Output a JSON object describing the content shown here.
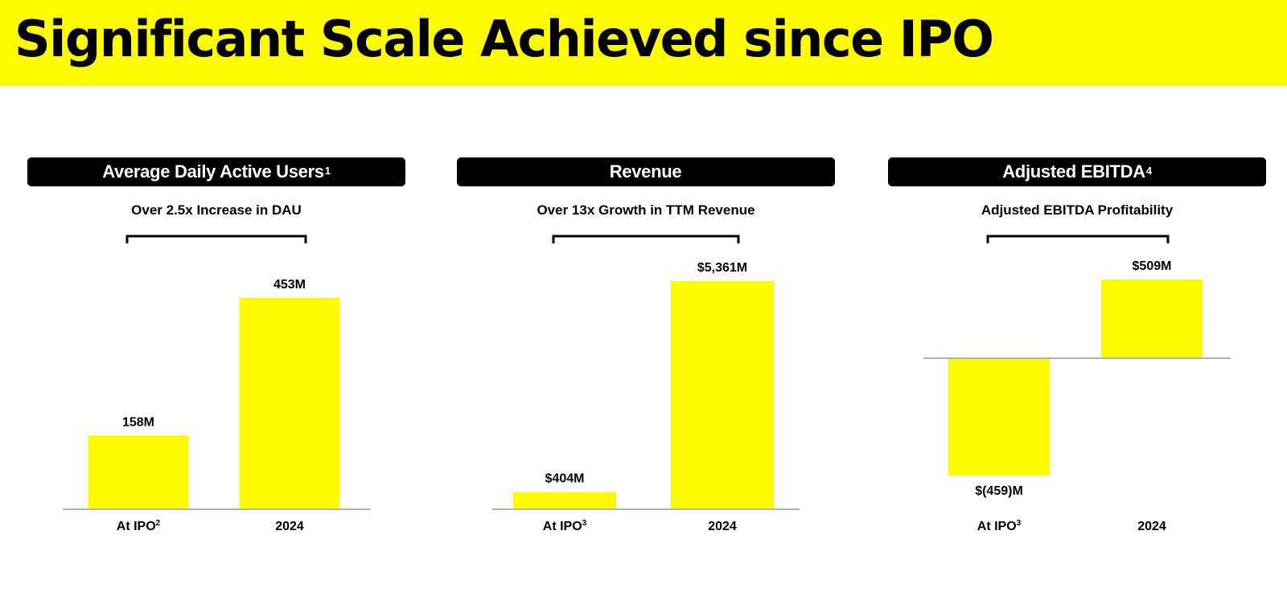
{
  "page": {
    "title": "Significant Scale Achieved since IPO"
  },
  "colors": {
    "banner": "#fffc00",
    "bar": "#fffc00",
    "header_bg": "#000000",
    "baseline": "#b3b3b3"
  },
  "panels": [
    {
      "header": "Average Daily Active Users",
      "header_sup": "1",
      "subtitle": "Over 2.5x Increase in DAU"
    },
    {
      "header": "Revenue",
      "header_sup": "",
      "subtitle": "Over 13x Growth in TTM Revenue"
    },
    {
      "header": "Adjusted EBITDA",
      "header_sup": "4",
      "subtitle": "Adjusted EBITDA Profitability"
    }
  ],
  "chart_data": [
    {
      "type": "bar",
      "categories": [
        "At IPO",
        "2024"
      ],
      "category_sups": [
        "2",
        ""
      ],
      "values": [
        158,
        453
      ],
      "data_labels": [
        "158M",
        "453M"
      ],
      "unit": "M",
      "ylim": [
        0,
        453
      ]
    },
    {
      "type": "bar",
      "categories": [
        "At IPO",
        "2024"
      ],
      "category_sups": [
        "3",
        ""
      ],
      "values": [
        404,
        5361
      ],
      "data_labels": [
        "$404M",
        "$5,361M"
      ],
      "unit": "$M",
      "ylim": [
        0,
        5361
      ]
    },
    {
      "type": "bar",
      "categories": [
        "At IPO",
        "2024"
      ],
      "category_sups": [
        "3",
        ""
      ],
      "values": [
        -459,
        509
      ],
      "data_labels": [
        "$(459)M",
        "$509M"
      ],
      "unit": "$M",
      "ylim": [
        -459,
        509
      ]
    }
  ]
}
